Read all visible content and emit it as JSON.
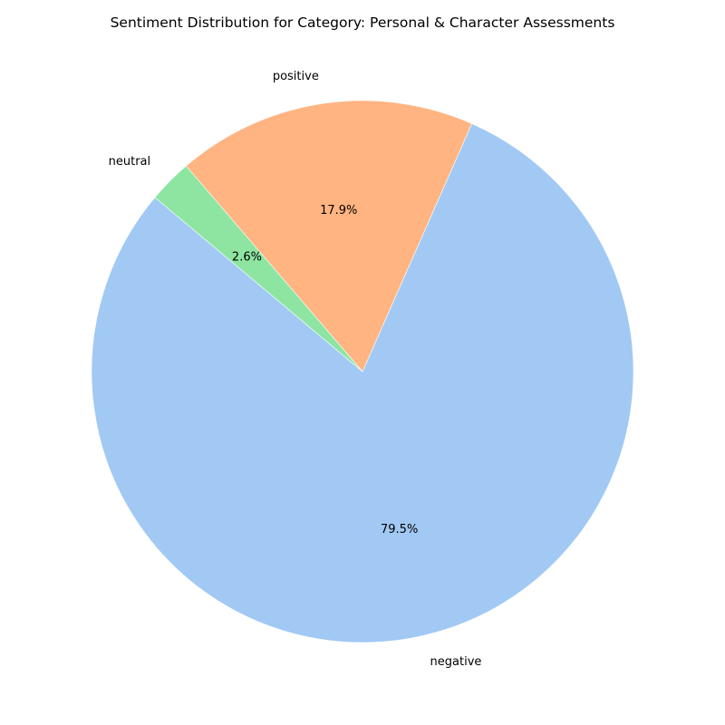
{
  "chart_data": {
    "type": "pie",
    "title": "Sentiment Distribution for Category: Personal & Character Assessments",
    "categories": [
      "negative",
      "positive",
      "neutral"
    ],
    "values": [
      79.5,
      17.9,
      2.6
    ],
    "percent_labels": [
      "79.5%",
      "17.9%",
      "2.6%"
    ],
    "colors": [
      "#a1c9f4",
      "#ffb482",
      "#8de5a1"
    ],
    "start_angle_deg": 140,
    "direction": "counterclockwise",
    "legend": "none"
  }
}
